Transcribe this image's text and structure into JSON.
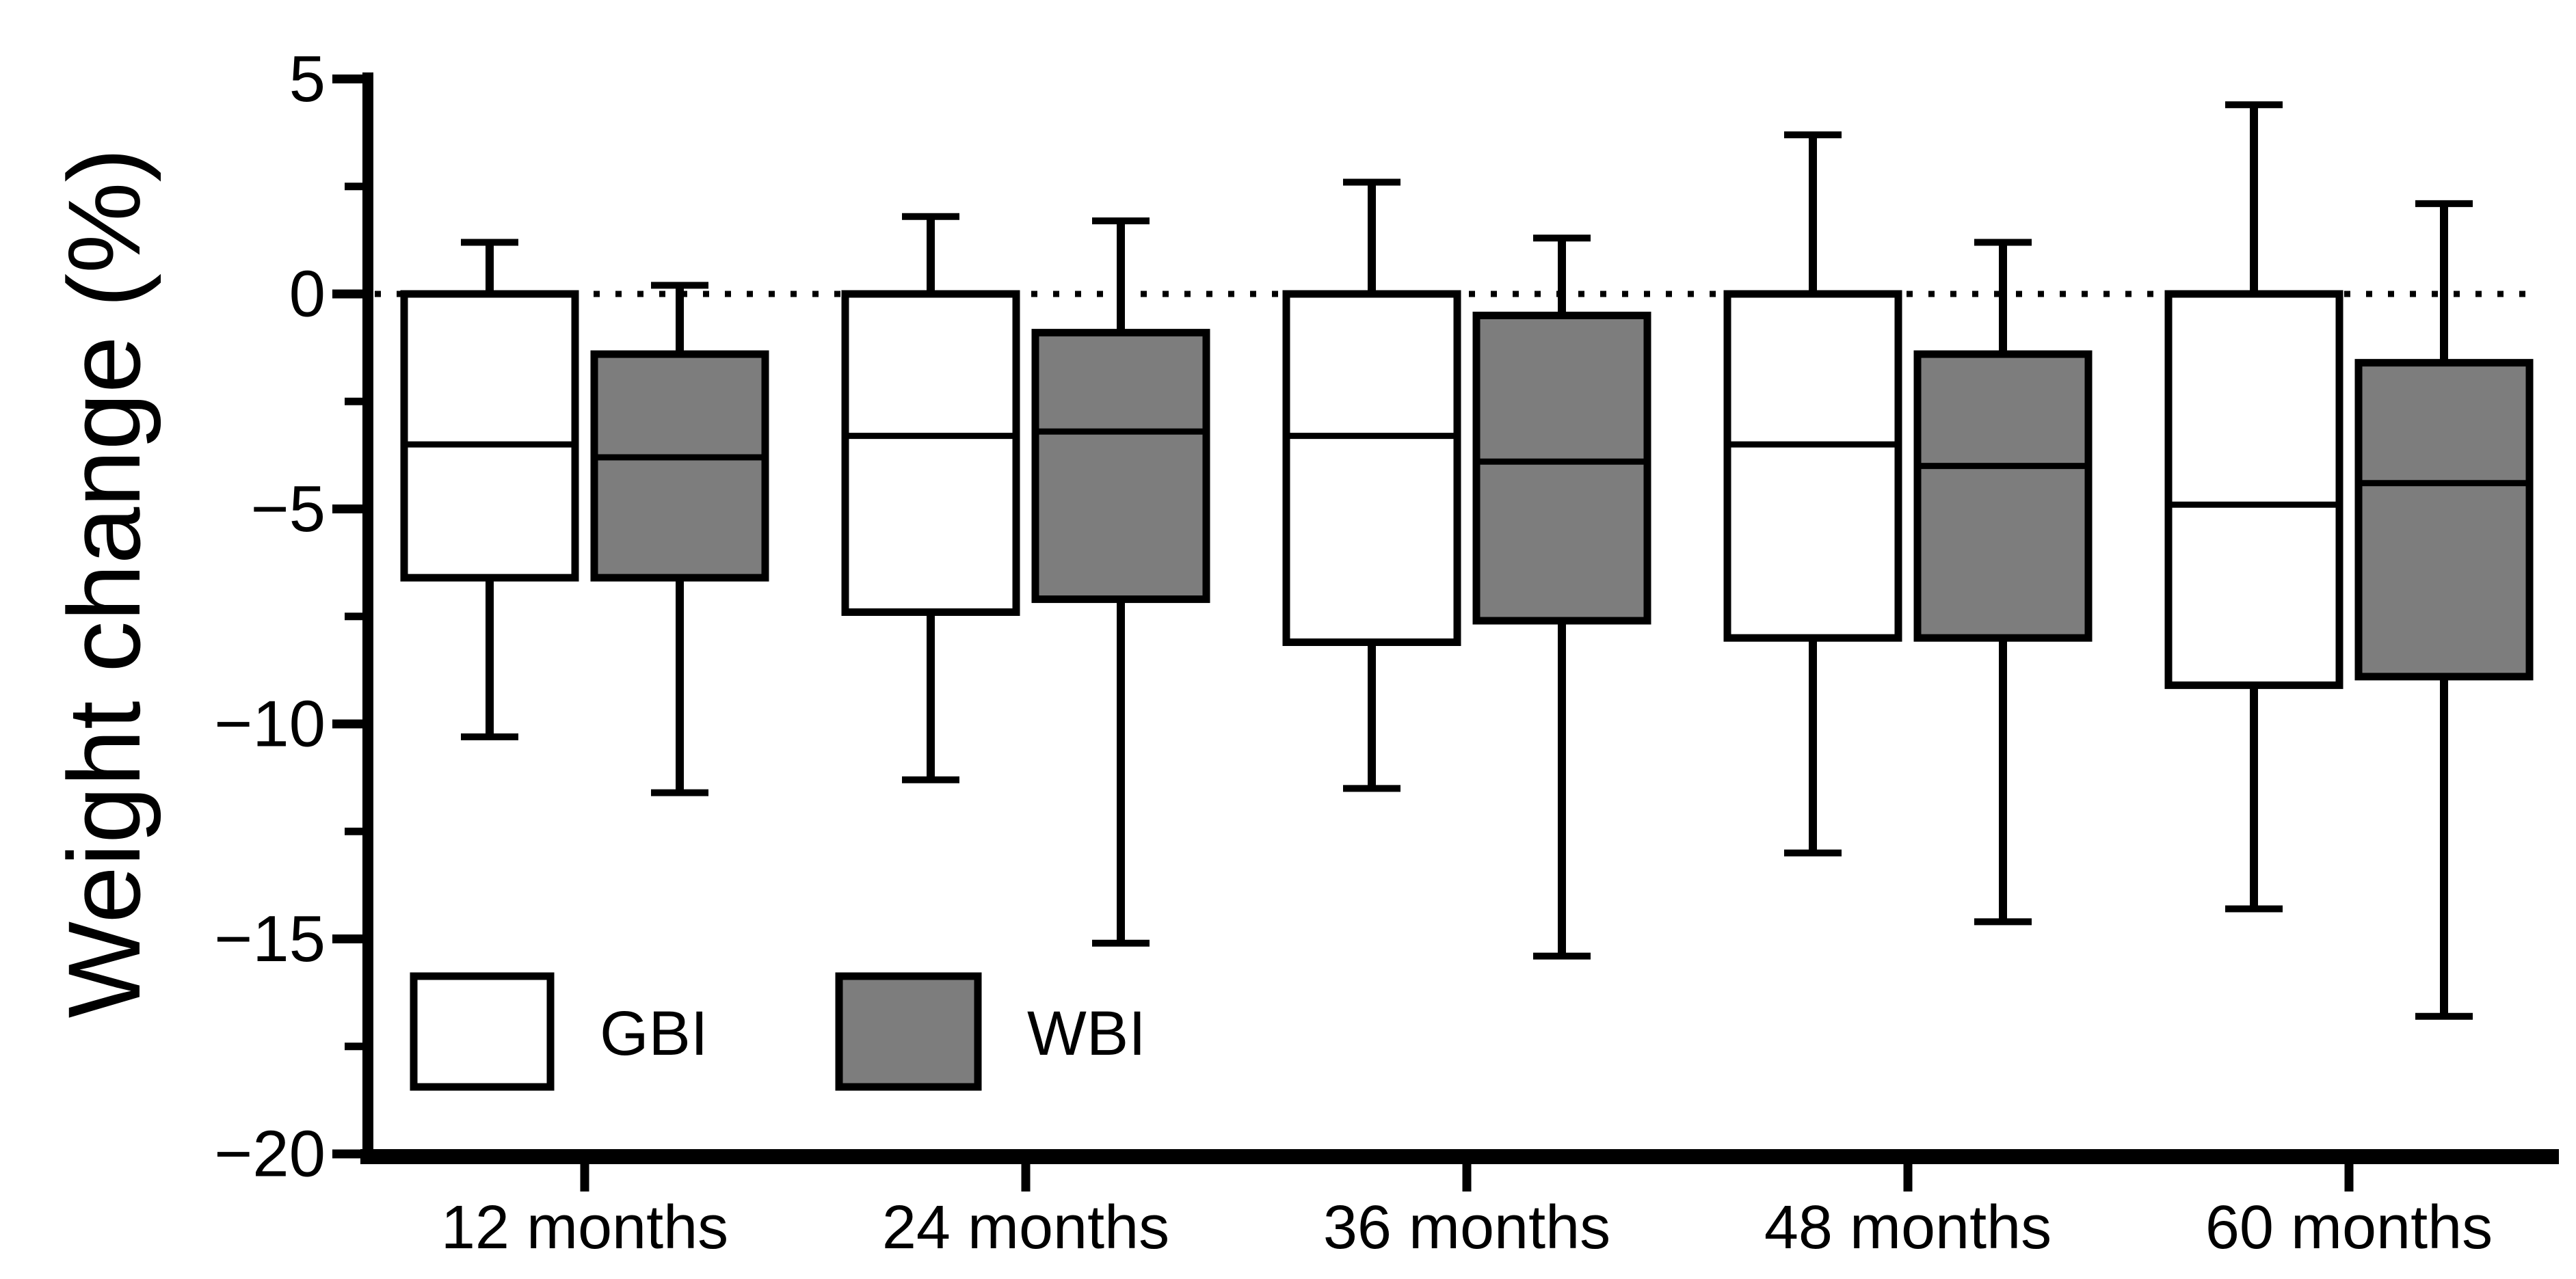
{
  "figure": {
    "background": "#ffffff",
    "ink_color": "#000000"
  },
  "chart_data": {
    "type": "boxplot",
    "title": "",
    "xlabel": "",
    "ylabel": "Weight change (%)",
    "categories": [
      "12 months",
      "24 months",
      "36 months",
      "48 months",
      "60 months"
    ],
    "ylim": [
      -20,
      5
    ],
    "yticks": {
      "values": [
        5,
        0,
        -5,
        -10,
        -15,
        -20
      ],
      "labels": [
        "5",
        "0",
        "−5",
        "−10",
        "−15",
        "−20"
      ]
    },
    "minor_ytick_values": [
      2.5,
      -2.5,
      -7.5,
      -12.5,
      -17.5
    ],
    "zero_reference_line": {
      "value": 0,
      "style": "dotted"
    },
    "grid": false,
    "legend_position": "inside-bottom-left",
    "legend": [
      {
        "label": "GBI",
        "fill": "#ffffff"
      },
      {
        "label": "WBI",
        "fill": "#7d7d7d"
      }
    ],
    "series": [
      {
        "name": "GBI",
        "fill": "#ffffff",
        "stats": [
          {
            "category": "12 months",
            "whisker_low": -10.3,
            "q1": -6.6,
            "median": -3.5,
            "q3": 0.0,
            "whisker_high": 1.2
          },
          {
            "category": "24 months",
            "whisker_low": -11.3,
            "q1": -7.4,
            "median": -3.3,
            "q3": 0.0,
            "whisker_high": 1.8
          },
          {
            "category": "36 months",
            "whisker_low": -11.5,
            "q1": -8.1,
            "median": -3.3,
            "q3": 0.0,
            "whisker_high": 2.6
          },
          {
            "category": "48 months",
            "whisker_low": -13.0,
            "q1": -8.0,
            "median": -3.5,
            "q3": 0.0,
            "whisker_high": 3.7
          },
          {
            "category": "60 months",
            "whisker_low": -14.3,
            "q1": -9.1,
            "median": -4.9,
            "q3": 0.0,
            "whisker_high": 4.4
          }
        ]
      },
      {
        "name": "WBI",
        "fill": "#7d7d7d",
        "stats": [
          {
            "category": "12 months",
            "whisker_low": -11.6,
            "q1": -6.6,
            "median": -3.8,
            "q3": -1.4,
            "whisker_high": 0.2
          },
          {
            "category": "24 months",
            "whisker_low": -15.1,
            "q1": -7.1,
            "median": -3.2,
            "q3": -0.9,
            "whisker_high": 1.7
          },
          {
            "category": "36 months",
            "whisker_low": -15.4,
            "q1": -7.6,
            "median": -3.9,
            "q3": -0.5,
            "whisker_high": 1.3
          },
          {
            "category": "48 months",
            "whisker_low": -14.6,
            "q1": -8.0,
            "median": -4.0,
            "q3": -1.4,
            "whisker_high": 1.2
          },
          {
            "category": "60 months",
            "whisker_low": -16.8,
            "q1": -8.9,
            "median": -4.4,
            "q3": -1.6,
            "whisker_high": 2.1
          }
        ]
      }
    ]
  }
}
